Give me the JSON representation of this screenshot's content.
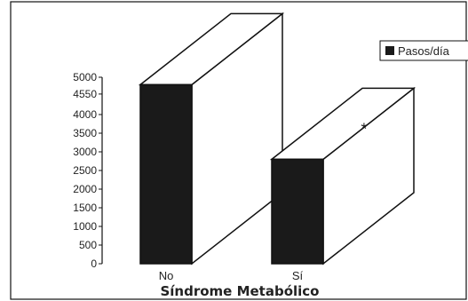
{
  "chart_data": {
    "type": "bar",
    "categories": [
      "No",
      "Sí"
    ],
    "series": [
      {
        "name": "Pasos/día",
        "values": [
          4800,
          2800
        ]
      }
    ],
    "xlabel": "Síndrome Metabólico",
    "ylabel": "",
    "ylim": [
      0,
      5000
    ],
    "yticks": [
      5000,
      4550,
      4000,
      3500,
      3000,
      2500,
      2000,
      1500,
      1000,
      500,
      0
    ],
    "annotations": [
      {
        "category": "Sí",
        "text": "*"
      }
    ],
    "legend": "top-right",
    "grid": false,
    "style": "3d",
    "colors": {
      "front": "#1a1a1a",
      "side": "#ffffff",
      "stroke": "#111111"
    }
  }
}
